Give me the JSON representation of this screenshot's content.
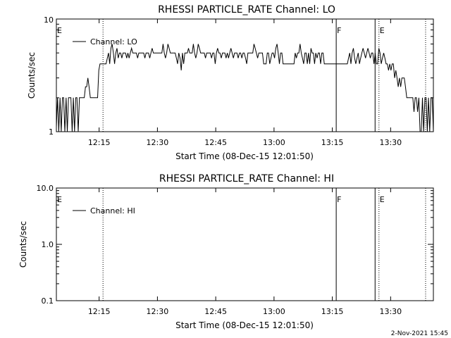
{
  "chart_data": [
    {
      "type": "line",
      "title": "RHESSI PARTICLE_RATE Channel: LO",
      "xlabel": "Start Time (08-Dec-15 12:01:50)",
      "ylabel": "Counts/sec",
      "yscale": "log",
      "ylim": [
        1,
        10
      ],
      "y_tick_labels": [
        "1",
        "10"
      ],
      "xlim": [
        "12:04",
        "13:41"
      ],
      "x_tick_labels": [
        "12:15",
        "12:30",
        "12:45",
        "13:00",
        "13:15",
        "13:30"
      ],
      "legend": {
        "placement": "top-left",
        "entries": [
          "Channel: LO"
        ]
      },
      "markers": [
        {
          "label": "E",
          "time": "12:04",
          "style": "none"
        },
        {
          "label": "",
          "time": "12:16",
          "style": "dotted"
        },
        {
          "label": "F",
          "time": "13:16",
          "style": "solid"
        },
        {
          "label": "",
          "time": "13:26",
          "style": "solid"
        },
        {
          "label": "E",
          "time": "13:27",
          "style": "dotted"
        },
        {
          "label": "",
          "time": "13:39",
          "style": "dotted"
        }
      ],
      "series": [
        {
          "name": "Channel: LO",
          "x_minutes_start": 0,
          "x_minutes_end": 97,
          "values": [
            1.1,
            2,
            1,
            2,
            1,
            2,
            2,
            1,
            2,
            1,
            2,
            2,
            2,
            1,
            2,
            1,
            2,
            2,
            1,
            2,
            2,
            2,
            2,
            2,
            2.5,
            2.5,
            3,
            2.5,
            2,
            2,
            2,
            2,
            2,
            2,
            2,
            3.5,
            4,
            4,
            4,
            4,
            4,
            4,
            4.5,
            5,
            4,
            5.5,
            6,
            5,
            4,
            5,
            5.5,
            4.5,
            5,
            5,
            4.5,
            5,
            5,
            5,
            4.5,
            5,
            4.5,
            5,
            5.5,
            5,
            5,
            5,
            5,
            4.5,
            5,
            5,
            5,
            5,
            5,
            4.5,
            5,
            5,
            5,
            4.5,
            5,
            5.5,
            5,
            5,
            5,
            5,
            5,
            5,
            5,
            5,
            6,
            5,
            4.5,
            5,
            6,
            5.5,
            5,
            5,
            5,
            5,
            5,
            4.5,
            4,
            5,
            4.5,
            3.5,
            5,
            4,
            5,
            5,
            5,
            5.5,
            5,
            5,
            5,
            6,
            5,
            4.5,
            5,
            6,
            5.5,
            5,
            5,
            5,
            5,
            4.5,
            5,
            5,
            5,
            5,
            4.5,
            5,
            5,
            4,
            5,
            5.5,
            5,
            5,
            4.5,
            5,
            5,
            5,
            4.5,
            5,
            4.5,
            5,
            5.5,
            5,
            4.5,
            5,
            5,
            5,
            4.5,
            5,
            5,
            4.5,
            5,
            5,
            4.5,
            4,
            5,
            5,
            5,
            5,
            5,
            6,
            5.5,
            5,
            4.5,
            5,
            5,
            5,
            5,
            4,
            4,
            4,
            5,
            5,
            4,
            4.5,
            5,
            5,
            4.5,
            5.5,
            6,
            5,
            4,
            5,
            5,
            4,
            4,
            4,
            4,
            4,
            4,
            4,
            4,
            4,
            4,
            5,
            4.5,
            5,
            5,
            6,
            5,
            4.5,
            4,
            5,
            5,
            4,
            5,
            4,
            5.5,
            5,
            5,
            4,
            5,
            4.5,
            5,
            5,
            4,
            5,
            5,
            4,
            4,
            4,
            4,
            4,
            4,
            4,
            4,
            4,
            4,
            4,
            4,
            4,
            4,
            4,
            4,
            4,
            4,
            4,
            4,
            4.5,
            5,
            4,
            5,
            5.5,
            4.5,
            4,
            4.5,
            5,
            4,
            4.5,
            5,
            5.5,
            5,
            4.5,
            5,
            5.5,
            5,
            4.5,
            5,
            5,
            4,
            5,
            4,
            4,
            5.5,
            5,
            4,
            4.5,
            5,
            4.5,
            4,
            4,
            3.5,
            4,
            3.5,
            4,
            4,
            3,
            3.5,
            3,
            2.5,
            3,
            2.5,
            3,
            3,
            3,
            2.5,
            2,
            2,
            2,
            2,
            2,
            2,
            1.5,
            2,
            2,
            1.5,
            2,
            1,
            1,
            2,
            1,
            2,
            2,
            1,
            2,
            1,
            2,
            2,
            1
          ]
        }
      ]
    },
    {
      "type": "line",
      "title": "RHESSI PARTICLE_RATE Channel: HI",
      "xlabel": "Start Time (08-Dec-15 12:01:50)",
      "ylabel": "Counts/sec",
      "yscale": "log",
      "ylim": [
        0.1,
        10
      ],
      "y_tick_labels": [
        "0.1",
        "1.0",
        "10.0"
      ],
      "xlim": [
        "12:04",
        "13:41"
      ],
      "x_tick_labels": [
        "12:15",
        "12:30",
        "12:45",
        "13:00",
        "13:15",
        "13:30"
      ],
      "legend": {
        "placement": "top-left",
        "entries": [
          "Channel: HI"
        ]
      },
      "markers": [
        {
          "label": "E",
          "time": "12:04",
          "style": "none"
        },
        {
          "label": "",
          "time": "12:16",
          "style": "dotted"
        },
        {
          "label": "F",
          "time": "13:16",
          "style": "solid"
        },
        {
          "label": "",
          "time": "13:26",
          "style": "solid"
        },
        {
          "label": "E",
          "time": "13:27",
          "style": "dotted"
        },
        {
          "label": "",
          "time": "13:39",
          "style": "dotted"
        }
      ],
      "series": [
        {
          "name": "Channel: HI",
          "values": []
        }
      ]
    }
  ],
  "footer": {
    "timestamp": "2-Nov-2021 15:45"
  }
}
